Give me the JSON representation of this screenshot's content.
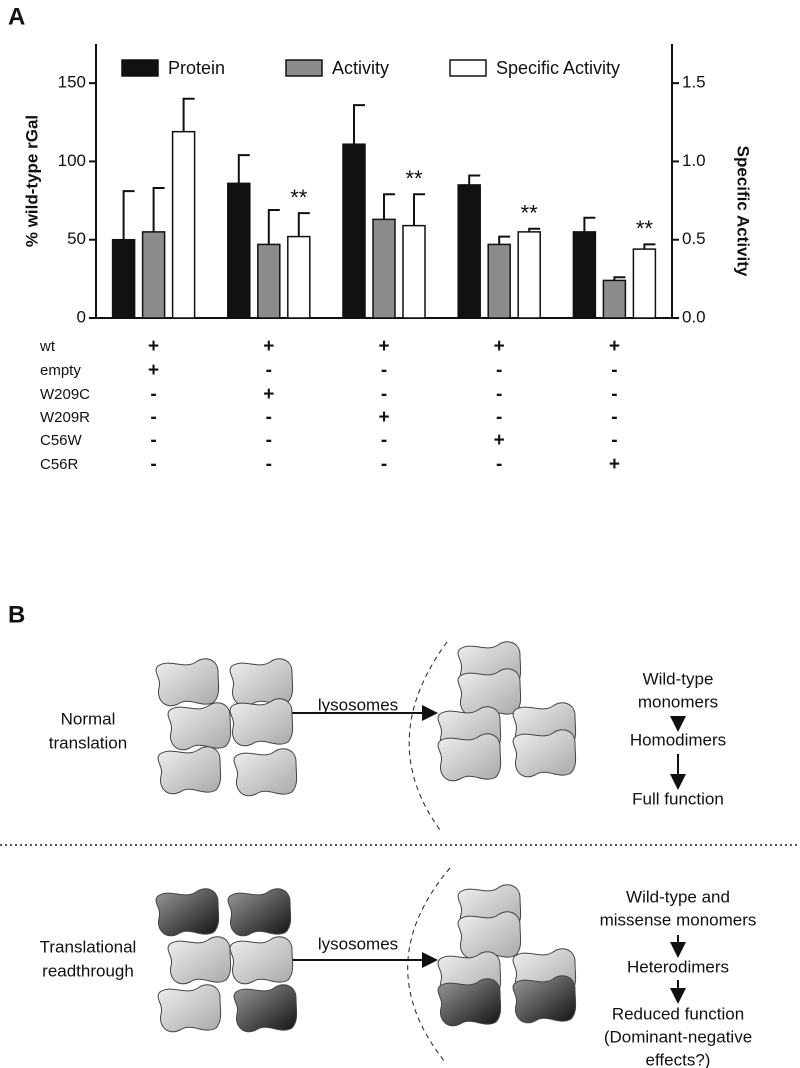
{
  "panel_labels": [
    "A",
    "B"
  ],
  "chart_data": {
    "type": "bar",
    "categories": [
      null,
      null,
      null,
      null,
      null
    ],
    "ylabel": "% wild-type rGal",
    "y2label": "Specific Activity",
    "ylim": [
      0,
      175
    ],
    "yticks": [
      0,
      50,
      100,
      150
    ],
    "y2lim": [
      0,
      1.75
    ],
    "y2ticks": [
      {
        "value": 0,
        "label": "0.0"
      },
      {
        "value": 0.5,
        "label": "0.5"
      },
      {
        "value": 1,
        "label": "1.0"
      },
      {
        "value": 1.5,
        "label": "1.5"
      }
    ],
    "legend": "top",
    "series": [
      {
        "name": "Protein",
        "color": "#111111",
        "values": [
          50,
          86,
          111,
          85,
          55
        ],
        "errors": [
          31,
          18,
          25,
          6,
          9
        ]
      },
      {
        "name": "Activity",
        "color": "#8c8c8c",
        "values": [
          55,
          47,
          63,
          47,
          24
        ],
        "errors": [
          28,
          22,
          16,
          5,
          2
        ]
      },
      {
        "name": "Specific Activity",
        "color": "#ffffff",
        "axis": "y2",
        "values": [
          1.19,
          0.52,
          0.59,
          0.55,
          0.44
        ],
        "errors": [
          0.21,
          0.15,
          0.2,
          0.02,
          0.03
        ],
        "significance": [
          null,
          "**",
          "**",
          "**",
          "**"
        ]
      }
    ]
  },
  "conditions": [
    {
      "label": "wt",
      "marks": [
        "+",
        "+",
        "+",
        "+",
        "+"
      ]
    },
    {
      "label": "empty",
      "marks": [
        "+",
        "-",
        "-",
        "-",
        "-"
      ]
    },
    {
      "label": "W209C",
      "marks": [
        "-",
        "+",
        "-",
        "-",
        "-"
      ]
    },
    {
      "label": "W209R",
      "marks": [
        "-",
        "-",
        "+",
        "-",
        "-"
      ]
    },
    {
      "label": "C56W",
      "marks": [
        "-",
        "-",
        "-",
        "+",
        "-"
      ]
    },
    {
      "label": "C56R",
      "marks": [
        "-",
        "-",
        "-",
        "-",
        "+"
      ]
    }
  ],
  "diagram": {
    "top": {
      "left_label": [
        "Normal",
        "translation"
      ],
      "arrow_label": "lysosomes",
      "steps": [
        [
          "Wild-type",
          "monomers"
        ],
        [
          "Homodimers"
        ],
        [
          "Full function"
        ]
      ]
    },
    "bottom": {
      "left_label": [
        "Translational",
        "readthrough"
      ],
      "arrow_label": "lysosomes",
      "steps": [
        [
          "Wild-type and",
          "missense monomers"
        ],
        [
          "Heterodimers"
        ],
        [
          "Reduced function",
          "(Dominant-negative",
          "effects?)"
        ]
      ]
    }
  }
}
